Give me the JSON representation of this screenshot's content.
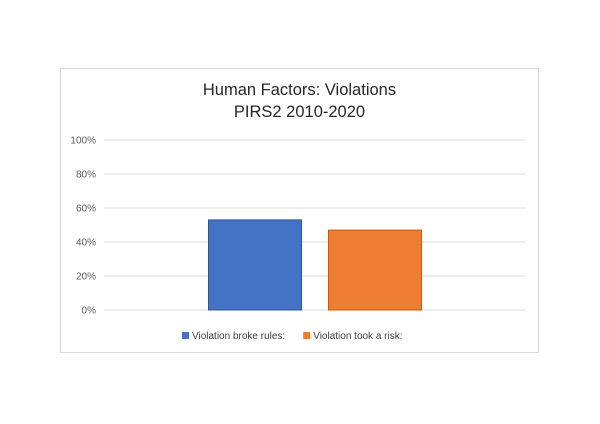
{
  "chart_data": {
    "type": "bar",
    "title": "Human Factors: Violations",
    "subtitle": "PIRS2 2010-2020",
    "xlabel": "",
    "ylabel": "",
    "ylim": [
      0,
      1
    ],
    "y_ticks": [
      0,
      0.2,
      0.4,
      0.6,
      0.8,
      1.0
    ],
    "y_tick_labels": [
      "0%",
      "20%",
      "40%",
      "60%",
      "80%",
      "100%"
    ],
    "grid": true,
    "legend_position": "bottom",
    "series": [
      {
        "name": "Violation broke rules:",
        "value": 0.53,
        "color": "#4472c4"
      },
      {
        "name": "Violation took a risk:",
        "value": 0.47,
        "color": "#ed7d31"
      }
    ]
  }
}
